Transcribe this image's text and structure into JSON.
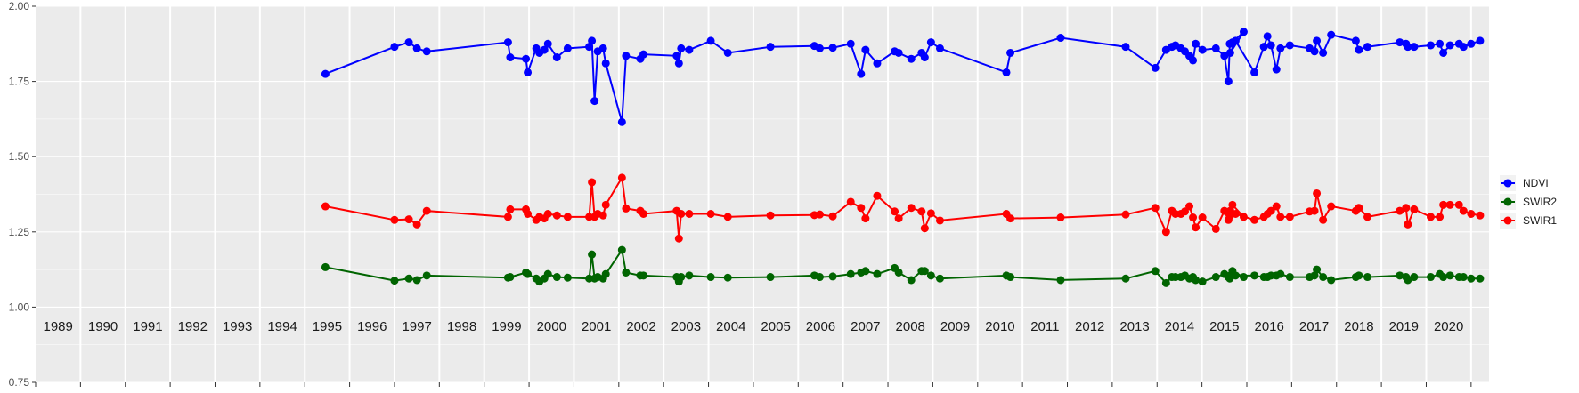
{
  "chart_data": {
    "type": "line",
    "title": "",
    "xlabel": "",
    "ylabel": "",
    "ylim": [
      0.75,
      2.0
    ],
    "xlim": [
      1988.5,
      2020.9
    ],
    "y_ticks": [
      "0.75",
      "1.00",
      "1.25",
      "1.50",
      "1.75",
      "2.00"
    ],
    "x_tick_labels": [
      "1989",
      "1990",
      "1991",
      "1992",
      "1993",
      "1994",
      "1995",
      "1996",
      "1997",
      "1998",
      "1999",
      "2000",
      "2001",
      "2002",
      "2003",
      "2004",
      "2005",
      "2006",
      "2007",
      "2008",
      "2009",
      "2010",
      "2011",
      "2012",
      "2013",
      "2014",
      "2015",
      "2016",
      "2017",
      "2018",
      "2019",
      "2020"
    ],
    "grid": true,
    "legend_position": "right",
    "legend": [
      "NDVI",
      "SWIR2",
      "SWIR1"
    ],
    "series": [
      {
        "name": "NDVI",
        "color": "#0000ff",
        "x": [
          1994.96,
          1996.5,
          1996.82,
          1997.0,
          1997.22,
          1999.03,
          1999.08,
          1999.43,
          1999.47,
          1999.66,
          1999.73,
          1999.84,
          1999.92,
          2000.12,
          2000.36,
          2000.84,
          2000.9,
          2000.96,
          2001.03,
          2001.15,
          2001.21,
          2001.57,
          2001.66,
          2001.98,
          2002.05,
          2002.79,
          2002.84,
          2002.89,
          2003.07,
          2003.55,
          2003.93,
          2004.88,
          2005.86,
          2005.98,
          2006.27,
          2006.67,
          2006.9,
          2007.0,
          2007.26,
          2007.65,
          2007.74,
          2008.02,
          2008.25,
          2008.32,
          2008.46,
          2008.66,
          2010.14,
          2010.23,
          2011.35,
          2012.8,
          2013.46,
          2013.7,
          2013.83,
          2013.91,
          2014.03,
          2014.12,
          2014.22,
          2014.3,
          2014.36,
          2014.51,
          2014.81,
          2015.0,
          2015.09,
          2015.12,
          2015.18,
          2015.43,
          2015.13,
          2015.25,
          2015.67,
          2015.88,
          2015.96,
          2016.04,
          2016.16,
          2016.25,
          2016.46,
          2016.9,
          2017.01,
          2017.06,
          2017.2,
          2017.38,
          2017.93,
          2018.0,
          2018.19,
          2018.91,
          2019.05,
          2019.09,
          2019.23,
          2019.6,
          2019.8,
          2019.88,
          2020.03,
          2020.23,
          2020.33,
          2020.5,
          2020.7
        ],
        "values": [
          1.775,
          1.865,
          1.88,
          1.86,
          1.85,
          1.88,
          1.83,
          1.825,
          1.78,
          1.86,
          1.845,
          1.855,
          1.875,
          1.83,
          1.86,
          1.865,
          1.885,
          1.685,
          1.85,
          1.86,
          1.81,
          1.615,
          1.835,
          1.825,
          1.84,
          1.835,
          1.81,
          1.86,
          1.855,
          1.885,
          1.845,
          1.865,
          1.868,
          1.86,
          1.862,
          1.875,
          1.775,
          1.855,
          1.81,
          1.85,
          1.845,
          1.825,
          1.845,
          1.83,
          1.88,
          1.86,
          1.78,
          1.845,
          1.895,
          1.865,
          1.795,
          1.855,
          1.865,
          1.87,
          1.86,
          1.85,
          1.835,
          1.82,
          1.875,
          1.855,
          1.86,
          1.835,
          1.75,
          1.875,
          1.88,
          1.915,
          1.845,
          1.885,
          1.78,
          1.865,
          1.9,
          1.87,
          1.79,
          1.86,
          1.87,
          1.86,
          1.85,
          1.885,
          1.845,
          1.905,
          1.885,
          1.855,
          1.865,
          1.88,
          1.875,
          1.865,
          1.865,
          1.87,
          1.875,
          1.845,
          1.87,
          1.875,
          1.865,
          1.875,
          1.885
        ]
      },
      {
        "name": "SWIR2",
        "color": "#006400",
        "x": [
          1994.96,
          1996.5,
          1996.82,
          1997.0,
          1997.22,
          1999.03,
          1999.08,
          1999.43,
          1999.47,
          1999.66,
          1999.73,
          1999.84,
          1999.92,
          2000.12,
          2000.36,
          2000.84,
          2000.9,
          2000.96,
          2001.03,
          2001.15,
          2001.21,
          2001.57,
          2001.66,
          2001.98,
          2002.05,
          2002.79,
          2002.84,
          2002.89,
          2003.07,
          2003.55,
          2003.93,
          2004.88,
          2005.86,
          2005.98,
          2006.27,
          2006.67,
          2006.9,
          2007.0,
          2007.26,
          2007.65,
          2007.74,
          2008.02,
          2008.25,
          2008.32,
          2008.46,
          2008.66,
          2010.14,
          2010.23,
          2011.35,
          2012.8,
          2013.46,
          2013.7,
          2013.83,
          2013.91,
          2014.03,
          2014.12,
          2014.22,
          2014.3,
          2014.36,
          2014.51,
          2014.81,
          2015.0,
          2015.09,
          2015.12,
          2015.18,
          2015.43,
          2015.13,
          2015.25,
          2015.67,
          2015.88,
          2015.96,
          2016.04,
          2016.16,
          2016.25,
          2016.46,
          2016.9,
          2017.01,
          2017.06,
          2017.2,
          2017.38,
          2017.93,
          2018.0,
          2018.19,
          2018.91,
          2019.05,
          2019.09,
          2019.23,
          2019.6,
          2019.8,
          2019.88,
          2020.03,
          2020.23,
          2020.33,
          2020.5,
          2020.7
        ],
        "values": [
          1.133,
          1.088,
          1.095,
          1.09,
          1.105,
          1.098,
          1.1,
          1.115,
          1.11,
          1.095,
          1.085,
          1.095,
          1.11,
          1.1,
          1.098,
          1.095,
          1.175,
          1.095,
          1.1,
          1.095,
          1.11,
          1.19,
          1.115,
          1.105,
          1.105,
          1.1,
          1.085,
          1.1,
          1.105,
          1.1,
          1.098,
          1.1,
          1.105,
          1.1,
          1.102,
          1.11,
          1.115,
          1.12,
          1.11,
          1.13,
          1.115,
          1.09,
          1.12,
          1.12,
          1.105,
          1.095,
          1.105,
          1.1,
          1.09,
          1.095,
          1.12,
          1.08,
          1.1,
          1.1,
          1.1,
          1.105,
          1.095,
          1.1,
          1.09,
          1.085,
          1.1,
          1.11,
          1.1,
          1.095,
          1.12,
          1.1,
          1.105,
          1.105,
          1.105,
          1.1,
          1.1,
          1.105,
          1.105,
          1.11,
          1.1,
          1.1,
          1.105,
          1.125,
          1.1,
          1.09,
          1.1,
          1.105,
          1.1,
          1.105,
          1.1,
          1.09,
          1.1,
          1.1,
          1.11,
          1.1,
          1.105,
          1.1,
          1.1,
          1.095,
          1.095
        ]
      },
      {
        "name": "SWIR1",
        "color": "#ff0000",
        "x": [
          1994.96,
          1996.5,
          1996.82,
          1997.0,
          1997.22,
          1999.03,
          1999.08,
          1999.43,
          1999.47,
          1999.66,
          1999.73,
          1999.84,
          1999.92,
          2000.12,
          2000.36,
          2000.84,
          2000.9,
          2000.96,
          2001.03,
          2001.15,
          2001.21,
          2001.57,
          2001.66,
          2001.98,
          2002.05,
          2002.79,
          2002.84,
          2002.89,
          2003.07,
          2003.55,
          2003.93,
          2004.88,
          2005.86,
          2005.98,
          2006.27,
          2006.67,
          2006.9,
          2007.0,
          2007.26,
          2007.65,
          2007.74,
          2008.02,
          2008.25,
          2008.32,
          2008.46,
          2008.66,
          2010.14,
          2010.23,
          2011.35,
          2012.8,
          2013.46,
          2013.7,
          2013.83,
          2013.91,
          2014.03,
          2014.12,
          2014.22,
          2014.3,
          2014.36,
          2014.51,
          2014.81,
          2015.0,
          2015.09,
          2015.12,
          2015.18,
          2015.43,
          2015.13,
          2015.25,
          2015.67,
          2015.88,
          2015.96,
          2016.04,
          2016.16,
          2016.25,
          2016.46,
          2016.9,
          2017.01,
          2017.06,
          2017.2,
          2017.38,
          2017.93,
          2018.0,
          2018.19,
          2018.91,
          2019.05,
          2019.09,
          2019.23,
          2019.6,
          2019.8,
          2019.88,
          2020.03,
          2020.23,
          2020.33,
          2020.5,
          2020.7
        ],
        "values": [
          1.335,
          1.29,
          1.292,
          1.275,
          1.32,
          1.3,
          1.325,
          1.325,
          1.31,
          1.29,
          1.3,
          1.295,
          1.31,
          1.305,
          1.3,
          1.3,
          1.415,
          1.3,
          1.31,
          1.305,
          1.34,
          1.43,
          1.328,
          1.32,
          1.31,
          1.32,
          1.228,
          1.31,
          1.31,
          1.31,
          1.3,
          1.305,
          1.306,
          1.308,
          1.302,
          1.35,
          1.33,
          1.295,
          1.37,
          1.318,
          1.295,
          1.33,
          1.318,
          1.262,
          1.312,
          1.288,
          1.31,
          1.295,
          1.298,
          1.308,
          1.33,
          1.25,
          1.32,
          1.31,
          1.31,
          1.318,
          1.335,
          1.298,
          1.265,
          1.298,
          1.26,
          1.32,
          1.29,
          1.302,
          1.34,
          1.3,
          1.32,
          1.31,
          1.29,
          1.3,
          1.31,
          1.32,
          1.335,
          1.3,
          1.3,
          1.318,
          1.32,
          1.378,
          1.29,
          1.335,
          1.32,
          1.33,
          1.3,
          1.32,
          1.33,
          1.275,
          1.325,
          1.3,
          1.3,
          1.34,
          1.34,
          1.34,
          1.32,
          1.31,
          1.305
        ]
      }
    ]
  }
}
